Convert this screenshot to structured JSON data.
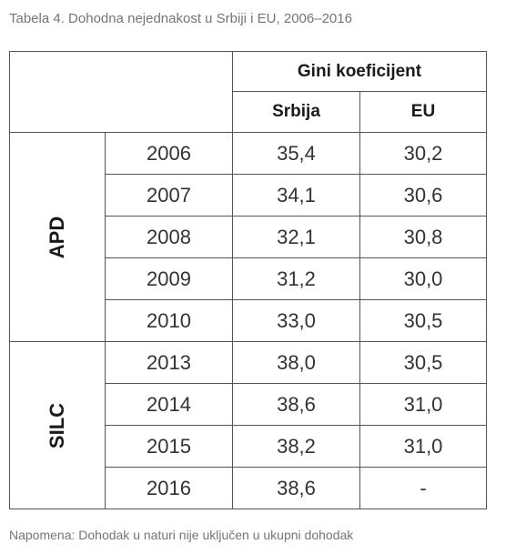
{
  "caption": "Tabela 4. Dohodna nejednakost u Srbiji i EU, 2006–2016",
  "note": "Napomena: Dohodak u naturi nije uključen u ukupni dohodak",
  "table": {
    "header_group": "Gini koeficijent",
    "col_srbija": "Srbija",
    "col_eu": "EU",
    "groups": [
      {
        "label": "APD",
        "rows": [
          {
            "year": "2006",
            "srbija": "35,4",
            "eu": "30,2"
          },
          {
            "year": "2007",
            "srbija": "34,1",
            "eu": "30,6"
          },
          {
            "year": "2008",
            "srbija": "32,1",
            "eu": "30,8"
          },
          {
            "year": "2009",
            "srbija": "31,2",
            "eu": "30,0"
          },
          {
            "year": "2010",
            "srbija": "33,0",
            "eu": "30,5"
          }
        ]
      },
      {
        "label": "SILC",
        "rows": [
          {
            "year": "2013",
            "srbija": "38,0",
            "eu": "30,5"
          },
          {
            "year": "2014",
            "srbija": "38,6",
            "eu": "31,0"
          },
          {
            "year": "2015",
            "srbija": "38,2",
            "eu": "31,0"
          },
          {
            "year": "2016",
            "srbija": "38,6",
            "eu": "-"
          }
        ]
      }
    ]
  }
}
